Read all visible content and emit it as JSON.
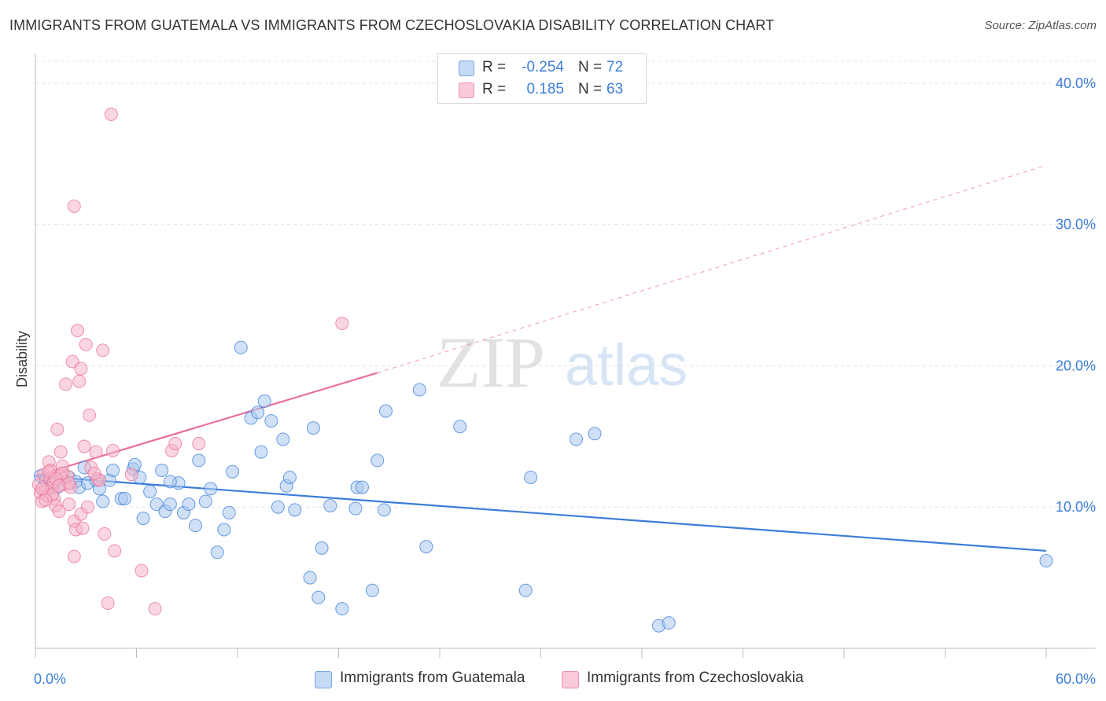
{
  "title": "IMMIGRANTS FROM GUATEMALA VS IMMIGRANTS FROM CZECHOSLOVAKIA DISABILITY CORRELATION CHART",
  "source": "Source: ZipAtlas.com",
  "watermark": {
    "zip": "ZIP",
    "atlas": "atlas"
  },
  "legend_top": [
    {
      "r_label": "R =",
      "r_value": "-0.254",
      "n_label": "N =",
      "n_value": "72",
      "color": "#a9c8f0"
    },
    {
      "r_label": "R =",
      "r_value": "0.185",
      "n_label": "N =",
      "n_value": "63",
      "color": "#f6b4c8"
    }
  ],
  "legend_bottom": [
    {
      "label": "Immigrants from Guatemala",
      "color": "#a9c8f0"
    },
    {
      "label": "Immigrants from Czechoslovakia",
      "color": "#f6b4c8"
    }
  ],
  "chart_data": {
    "type": "scatter",
    "title": "IMMIGRANTS FROM GUATEMALA VS IMMIGRANTS FROM CZECHOSLOVAKIA DISABILITY CORRELATION CHART",
    "xlabel": "",
    "ylabel": "Disability",
    "xlim": [
      0,
      60
    ],
    "ylim": [
      0,
      42
    ],
    "x_tick_labels": [
      "0.0%",
      "60.0%"
    ],
    "y_ticks": [
      10,
      20,
      30,
      40
    ],
    "y_tick_labels": [
      "10.0%",
      "20.0%",
      "30.0%",
      "40.0%"
    ],
    "grid": true,
    "legend_position": "bottom-center",
    "series": [
      {
        "name": "Immigrants from Guatemala",
        "color": "#3b7dd8",
        "fill": "#a9c8f0",
        "trend": {
          "x": [
            0,
            60
          ],
          "y": [
            12.2,
            6.9
          ],
          "dashed_extension": false
        },
        "points": [
          [
            0.3,
            12.2
          ],
          [
            0.6,
            11.9
          ],
          [
            1.0,
            11.6
          ],
          [
            1.6,
            12.0
          ],
          [
            2.0,
            12.1
          ],
          [
            2.4,
            11.8
          ],
          [
            2.6,
            11.4
          ],
          [
            3.1,
            11.7
          ],
          [
            3.6,
            11.9
          ],
          [
            3.8,
            11.3
          ],
          [
            4.0,
            10.4
          ],
          [
            4.4,
            11.9
          ],
          [
            4.6,
            12.6
          ],
          [
            5.1,
            10.6
          ],
          [
            5.3,
            10.6
          ],
          [
            5.8,
            12.7
          ],
          [
            5.9,
            13.0
          ],
          [
            6.2,
            12.1
          ],
          [
            6.4,
            9.2
          ],
          [
            6.8,
            11.1
          ],
          [
            7.2,
            10.2
          ],
          [
            7.5,
            12.6
          ],
          [
            7.7,
            9.7
          ],
          [
            8.0,
            10.2
          ],
          [
            8.5,
            11.7
          ],
          [
            8.8,
            9.6
          ],
          [
            9.1,
            10.2
          ],
          [
            9.5,
            8.7
          ],
          [
            9.7,
            13.3
          ],
          [
            10.1,
            10.4
          ],
          [
            10.4,
            11.3
          ],
          [
            10.8,
            6.8
          ],
          [
            11.2,
            8.4
          ],
          [
            11.5,
            9.6
          ],
          [
            11.7,
            12.5
          ],
          [
            12.2,
            21.3
          ],
          [
            12.8,
            16.3
          ],
          [
            13.2,
            16.7
          ],
          [
            13.4,
            13.9
          ],
          [
            13.6,
            17.5
          ],
          [
            14.0,
            16.1
          ],
          [
            14.4,
            10.0
          ],
          [
            14.7,
            14.8
          ],
          [
            14.9,
            11.5
          ],
          [
            15.1,
            12.1
          ],
          [
            15.4,
            9.8
          ],
          [
            16.5,
            15.6
          ],
          [
            16.8,
            3.6
          ],
          [
            17.0,
            7.1
          ],
          [
            16.3,
            5.0
          ],
          [
            17.5,
            10.1
          ],
          [
            18.2,
            2.8
          ],
          [
            19.0,
            9.9
          ],
          [
            19.1,
            11.4
          ],
          [
            19.4,
            11.4
          ],
          [
            20.0,
            4.1
          ],
          [
            20.3,
            13.3
          ],
          [
            20.7,
            9.8
          ],
          [
            20.8,
            16.8
          ],
          [
            22.8,
            18.3
          ],
          [
            23.2,
            7.2
          ],
          [
            25.2,
            15.7
          ],
          [
            29.1,
            4.1
          ],
          [
            29.4,
            12.1
          ],
          [
            32.1,
            14.8
          ],
          [
            33.2,
            15.2
          ],
          [
            37.0,
            1.6
          ],
          [
            37.6,
            1.8
          ],
          [
            60.0,
            6.2
          ],
          [
            2.9,
            12.8
          ],
          [
            1.3,
            11.4
          ],
          [
            8.0,
            11.8
          ]
        ]
      },
      {
        "name": "Immigrants from Czechoslovakia",
        "color": "#e8709a",
        "fill": "#f6b4c8",
        "trend": {
          "x": [
            0,
            20.3
          ],
          "y": [
            12.2,
            19.5
          ],
          "dashed_extension": {
            "x": [
              20.3,
              60
            ],
            "y": [
              19.5,
              34.2
            ]
          }
        },
        "points": [
          [
            0.2,
            11.6
          ],
          [
            0.3,
            11.0
          ],
          [
            0.4,
            10.4
          ],
          [
            0.5,
            12.3
          ],
          [
            0.6,
            11.2
          ],
          [
            0.7,
            10.8
          ],
          [
            0.8,
            13.2
          ],
          [
            0.9,
            12.0
          ],
          [
            1.0,
            11.4
          ],
          [
            1.1,
            10.6
          ],
          [
            1.2,
            10.1
          ],
          [
            1.3,
            15.5
          ],
          [
            1.4,
            9.7
          ],
          [
            1.5,
            13.9
          ],
          [
            1.6,
            12.9
          ],
          [
            1.7,
            11.6
          ],
          [
            1.8,
            18.7
          ],
          [
            1.9,
            12.2
          ],
          [
            2.0,
            10.2
          ],
          [
            2.1,
            11.4
          ],
          [
            2.2,
            20.3
          ],
          [
            2.3,
            9.0
          ],
          [
            2.4,
            8.4
          ],
          [
            2.5,
            22.5
          ],
          [
            2.6,
            18.9
          ],
          [
            2.7,
            19.8
          ],
          [
            2.8,
            8.5
          ],
          [
            2.9,
            14.3
          ],
          [
            3.0,
            21.5
          ],
          [
            3.1,
            10.0
          ],
          [
            3.2,
            16.5
          ],
          [
            3.3,
            12.8
          ],
          [
            3.6,
            13.9
          ],
          [
            3.7,
            12.0
          ],
          [
            3.8,
            11.9
          ],
          [
            4.0,
            21.1
          ],
          [
            4.1,
            8.1
          ],
          [
            2.3,
            6.5
          ],
          [
            2.3,
            31.3
          ],
          [
            4.3,
            3.2
          ],
          [
            4.5,
            37.8
          ],
          [
            4.6,
            14.0
          ],
          [
            4.7,
            6.9
          ],
          [
            5.7,
            12.3
          ],
          [
            6.3,
            5.5
          ],
          [
            7.1,
            2.8
          ],
          [
            8.1,
            14.0
          ],
          [
            8.3,
            14.5
          ],
          [
            9.7,
            14.5
          ],
          [
            18.2,
            23.0
          ],
          [
            0.9,
            12.6
          ],
          [
            1.0,
            10.9
          ],
          [
            1.1,
            11.8
          ],
          [
            1.5,
            12.2
          ],
          [
            1.6,
            12.4
          ],
          [
            0.4,
            11.3
          ],
          [
            0.6,
            10.5
          ],
          [
            0.8,
            12.5
          ],
          [
            1.2,
            12.0
          ],
          [
            2.0,
            11.7
          ],
          [
            3.5,
            12.4
          ],
          [
            1.4,
            11.5
          ],
          [
            2.7,
            9.5
          ]
        ]
      }
    ]
  }
}
